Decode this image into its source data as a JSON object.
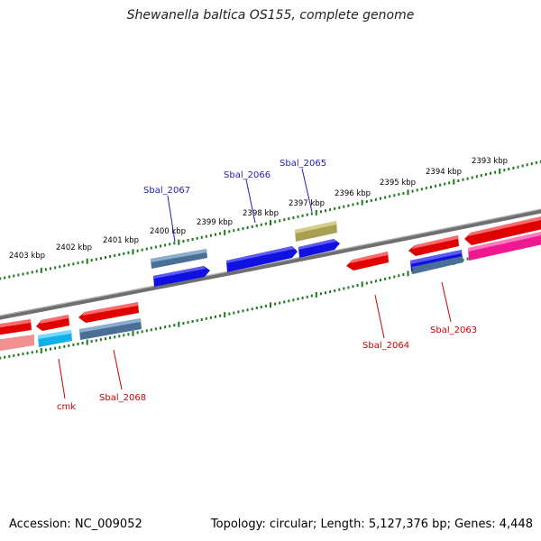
{
  "title": "Shewanella baltica OS155, complete genome",
  "footer": {
    "accession": "Accession: NC_009052",
    "summary": "Topology: circular; Length: 5,127,376 bp; Genes: 4,448"
  },
  "scale_labels": [
    "2403 kbp",
    "2402 kbp",
    "2401 kbp",
    "2400 kbp",
    "2399 kbp",
    "2398 kbp",
    "2397 kbp",
    "2396 kbp",
    "2395 kbp",
    "2394 kbp",
    "2393 kbp"
  ],
  "gene_labels": [
    {
      "text": "Sbal_2067",
      "strand": "top"
    },
    {
      "text": "Sbal_2066",
      "strand": "top"
    },
    {
      "text": "Sbal_2065",
      "strand": "top"
    },
    {
      "text": "Sbal_2064",
      "strand": "bottom"
    },
    {
      "text": "Sbal_2063",
      "strand": "bottom"
    },
    {
      "text": "cmk",
      "strand": "bottom"
    },
    {
      "text": "Sbal_2068",
      "strand": "bottom"
    }
  ],
  "colors": {
    "top_label": "#1f1fb8",
    "bottom_label": "#cc0000",
    "tick": "#1a7a1a",
    "backbone": "#808080"
  }
}
